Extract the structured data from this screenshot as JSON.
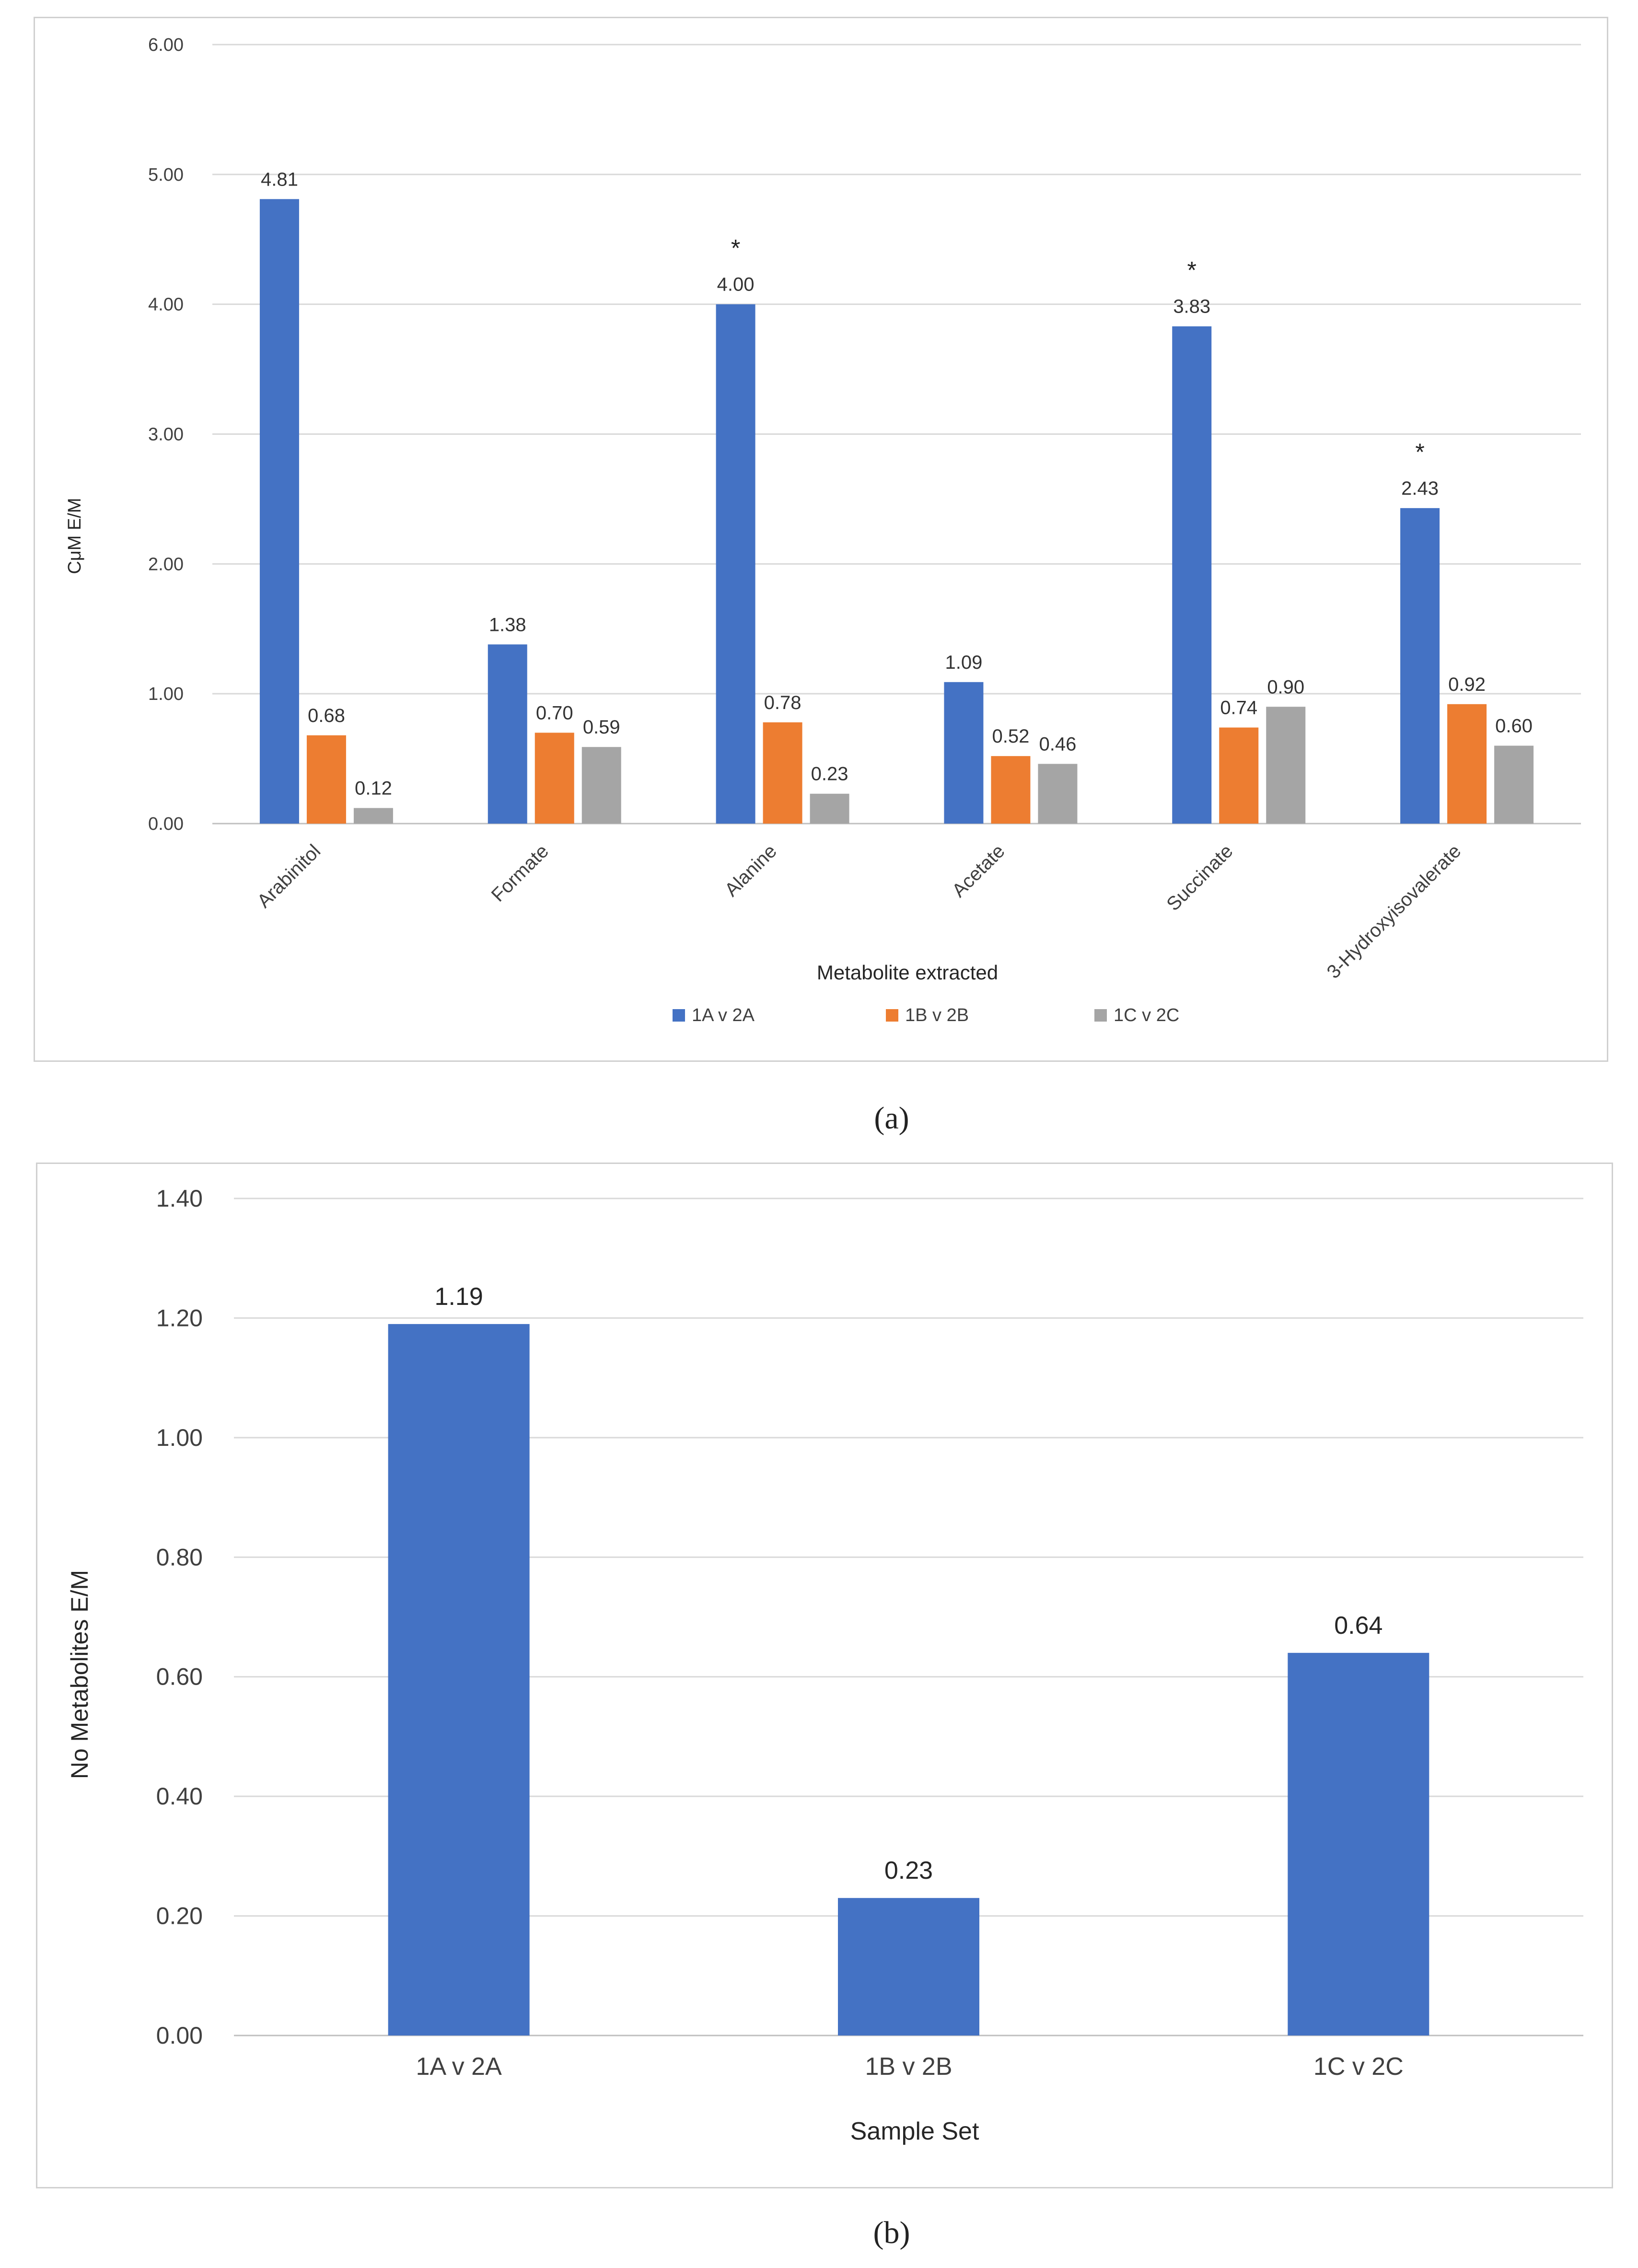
{
  "chart_data": [
    {
      "type": "bar",
      "panel": "a",
      "ylabel": "CμM E/M",
      "xlabel": "Metabolite extracted",
      "ylim": [
        0,
        6
      ],
      "yticks": [
        "0.00",
        "1.00",
        "2.00",
        "3.00",
        "4.00",
        "5.00",
        "6.00"
      ],
      "grid": true,
      "legend": "bottom",
      "categories": [
        "Arabinitol",
        "Formate",
        "Alanine",
        "Acetate",
        "Succinate",
        "3-Hydroxyisovalerate"
      ],
      "series": [
        {
          "name": "1A v 2A",
          "color": "#4472c4",
          "values": [
            4.81,
            1.38,
            4.0,
            1.09,
            3.83,
            2.43
          ],
          "labels": [
            "4.81",
            "1.38",
            "4.00",
            "1.09",
            "3.83",
            "2.43"
          ]
        },
        {
          "name": "1B v 2B",
          "color": "#ed7d31",
          "values": [
            0.68,
            0.7,
            0.78,
            0.52,
            0.74,
            0.92
          ],
          "labels": [
            "0.68",
            "0.70",
            "0.78",
            "0.52",
            "0.74",
            "0.92"
          ]
        },
        {
          "name": "1C v 2C",
          "color": "#a5a5a5",
          "values": [
            0.12,
            0.59,
            0.23,
            0.46,
            0.9,
            0.6
          ],
          "labels": [
            "0.12",
            "0.59",
            "0.23",
            "0.46",
            "0.90",
            "0.60"
          ]
        }
      ],
      "annotations": [
        {
          "category": "Alanine",
          "text": "*"
        },
        {
          "category": "Succinate",
          "text": "*"
        },
        {
          "category": "3-Hydroxyisovalerate",
          "text": "*"
        }
      ],
      "caption": "(a)"
    },
    {
      "type": "bar",
      "panel": "b",
      "ylabel": "No Metabolites E/M",
      "xlabel": "Sample Set",
      "ylim": [
        0,
        1.4
      ],
      "yticks": [
        "0.00",
        "0.20",
        "0.40",
        "0.60",
        "0.80",
        "1.00",
        "1.20",
        "1.40"
      ],
      "grid": true,
      "categories": [
        "1A v 2A",
        "1B v 2B",
        "1C v 2C"
      ],
      "series": [
        {
          "name": "No Metabolites E/M",
          "color": "#4472c4",
          "values": [
            1.19,
            0.23,
            0.64
          ],
          "labels": [
            "1.19",
            "0.23",
            "0.64"
          ]
        }
      ],
      "caption": "(b)"
    }
  ]
}
